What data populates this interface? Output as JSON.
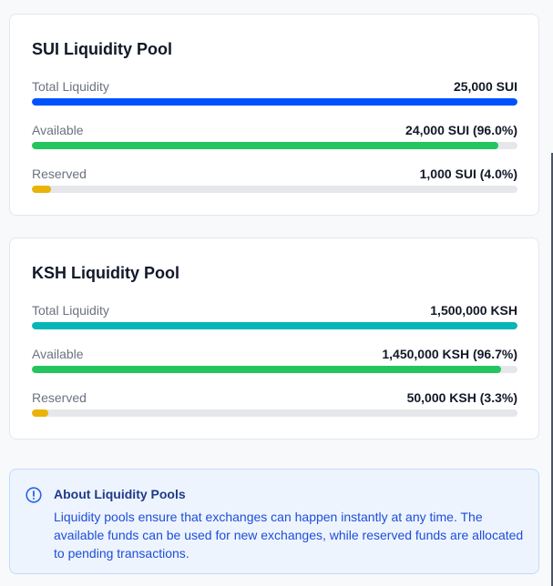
{
  "pools": [
    {
      "title": "SUI Liquidity Pool",
      "rows": [
        {
          "label": "Total Liquidity",
          "value": "25,000 SUI",
          "fraction": 1.0,
          "color": "#0052ff"
        },
        {
          "label": "Available",
          "value": "24,000 SUI (96.0%)",
          "fraction": 0.96,
          "color": "#22c55e"
        },
        {
          "label": "Reserved",
          "value": "1,000 SUI (4.0%)",
          "fraction": 0.04,
          "color": "#eab308"
        }
      ]
    },
    {
      "title": "KSH Liquidity Pool",
      "rows": [
        {
          "label": "Total Liquidity",
          "value": "1,500,000 KSH",
          "fraction": 1.0,
          "color": "#06b6b6"
        },
        {
          "label": "Available",
          "value": "1,450,000 KSH (96.7%)",
          "fraction": 0.967,
          "color": "#22c55e"
        },
        {
          "label": "Reserved",
          "value": "50,000 KSH (3.3%)",
          "fraction": 0.033,
          "color": "#eab308"
        }
      ]
    }
  ],
  "info": {
    "icon": "info-circle-icon",
    "title": "About Liquidity Pools",
    "body": "Liquidity pools ensure that exchanges can happen instantly at any time. The available funds can be used for new exchanges, while reserved funds are allocated to pending transactions."
  }
}
